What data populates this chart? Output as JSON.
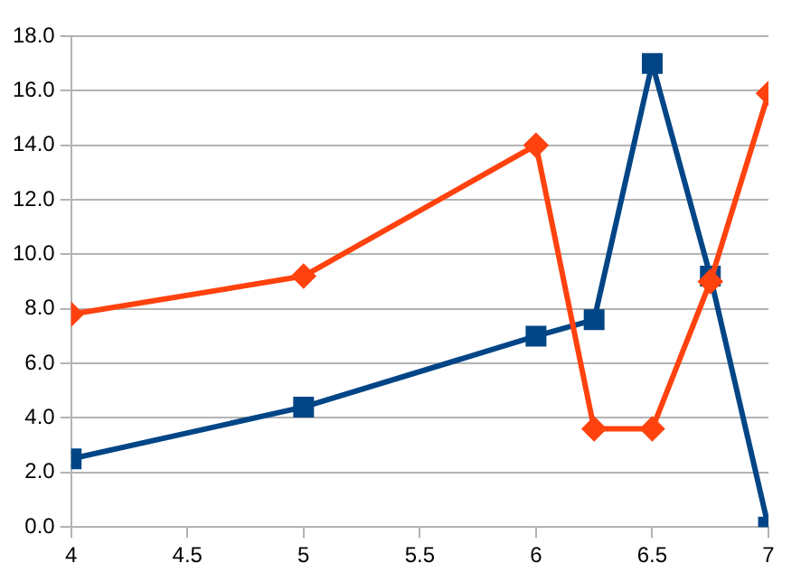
{
  "chart_data": {
    "type": "line",
    "x": [
      4,
      5,
      6,
      6.25,
      6.5,
      6.75,
      7
    ],
    "series": [
      {
        "color": "#ff420e",
        "marker": "diamond",
        "values": [
          7.8,
          9.2,
          14.0,
          3.6,
          3.6,
          9.0,
          15.9
        ]
      },
      {
        "color": "#004586",
        "marker": "square",
        "values": [
          2.5,
          4.4,
          7.0,
          7.6,
          17.0,
          9.2,
          0
        ]
      }
    ],
    "xlim": [
      4,
      7
    ],
    "xticks": [
      4,
      4.5,
      5,
      5.5,
      6,
      6.5,
      7
    ],
    "ylim": [
      0,
      18
    ],
    "yticks": [
      {
        "value": 0,
        "label": "0.0"
      },
      {
        "value": 2,
        "label": "2.0"
      },
      {
        "value": 4,
        "label": "4.0"
      },
      {
        "value": 6,
        "label": "6.0"
      },
      {
        "value": 8,
        "label": "8.0"
      },
      {
        "value": 10,
        "label": "10.0"
      },
      {
        "value": 12,
        "label": "12.0"
      },
      {
        "value": 14,
        "label": "14.0"
      },
      {
        "value": 16,
        "label": "16.0"
      },
      {
        "value": 18,
        "label": "18.0"
      }
    ],
    "grid": "y",
    "legend": false
  }
}
